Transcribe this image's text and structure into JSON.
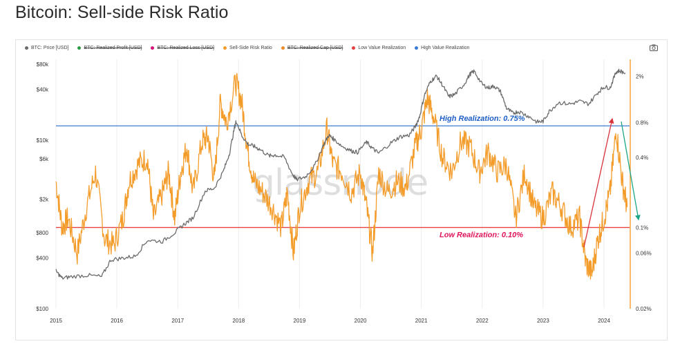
{
  "page": {
    "title": "Bitcoin: Sell-side Risk Ratio"
  },
  "legend": [
    {
      "label": "BTC: Price [USD]",
      "color": "#6b6b6b",
      "enabled": true
    },
    {
      "label": "BTC: Realized Profit [USD]",
      "color": "#2e9a45",
      "enabled": false
    },
    {
      "label": "BTC: Realized Loss [USD]",
      "color": "#d6157a",
      "enabled": false
    },
    {
      "label": "Sell-Side Risk Ratio",
      "color": "#f39c2a",
      "enabled": true
    },
    {
      "label": "BTC: Realized Cap [USD]",
      "color": "#f08a2a",
      "enabled": false
    },
    {
      "label": "Low Value Realization",
      "color": "#e8403f",
      "enabled": true
    },
    {
      "label": "High Value Realization",
      "color": "#3a7bd5",
      "enabled": true
    }
  ],
  "toolbar": {
    "camera_icon": "camera-icon"
  },
  "watermark": "glassnode",
  "chart_data": {
    "type": "line",
    "title": "Bitcoin: Sell-side Risk Ratio",
    "x_ticks": [
      "2015",
      "2016",
      "2017",
      "2018",
      "2019",
      "2020",
      "2021",
      "2022",
      "2023",
      "2024"
    ],
    "left_axis": {
      "scale": "log",
      "ticks": [
        "$80k",
        "$40k",
        "$10k",
        "$6k",
        "$2k",
        "$800",
        "$400",
        "$100"
      ],
      "tick_values": [
        80000,
        40000,
        10000,
        6000,
        2000,
        800,
        400,
        100
      ],
      "range": [
        100,
        80000
      ]
    },
    "right_axis": {
      "scale": "log",
      "ticks": [
        "2%",
        "0.8%",
        "0.4%",
        "0.1%",
        "0.06%",
        "0.02%"
      ],
      "tick_values": [
        2,
        0.8,
        0.4,
        0.1,
        0.06,
        0.02
      ],
      "range": [
        0.02,
        2.8
      ]
    },
    "grid": "vertical gridlines at year ticks",
    "reference_lines": [
      {
        "name": "High Value Realization",
        "value_pct": 0.75,
        "label": "High Realization: 0.75%",
        "color": "#3a7bd5"
      },
      {
        "name": "Low Value Realization",
        "value_pct": 0.1,
        "label": "Low Realization: 0.10%",
        "color": "#e8403f"
      }
    ],
    "series": [
      {
        "name": "BTC: Price [USD]",
        "axis": "left",
        "color": "#6b6b6b",
        "x": [
          2015.0,
          2015.1,
          2015.25,
          2015.5,
          2015.75,
          2015.9,
          2016.1,
          2016.3,
          2016.5,
          2016.75,
          2016.95,
          2017.1,
          2017.25,
          2017.45,
          2017.6,
          2017.75,
          2017.85,
          2017.93,
          2017.96,
          2018.05,
          2018.15,
          2018.25,
          2018.35,
          2018.5,
          2018.6,
          2018.75,
          2018.88,
          2018.95,
          2019.1,
          2019.25,
          2019.4,
          2019.48,
          2019.55,
          2019.7,
          2019.85,
          2019.95,
          2020.1,
          2020.2,
          2020.3,
          2020.5,
          2020.65,
          2020.8,
          2020.9,
          2020.97,
          2021.05,
          2021.15,
          2021.25,
          2021.35,
          2021.45,
          2021.55,
          2021.7,
          2021.8,
          2021.87,
          2022.0,
          2022.1,
          2022.2,
          2022.3,
          2022.4,
          2022.5,
          2022.6,
          2022.75,
          2022.9,
          2023.0,
          2023.1,
          2023.25,
          2023.45,
          2023.6,
          2023.75,
          2023.9,
          2024.0,
          2024.1,
          2024.2,
          2024.25,
          2024.35
        ],
        "values": [
          280,
          230,
          240,
          250,
          240,
          380,
          400,
          420,
          650,
          630,
          800,
          1000,
          1200,
          2500,
          2700,
          4300,
          7000,
          14000,
          17000,
          11500,
          9000,
          8500,
          7800,
          6500,
          6700,
          6300,
          4000,
          3400,
          3700,
          5000,
          9000,
          11500,
          10500,
          8500,
          7500,
          7200,
          9500,
          8000,
          7000,
          9300,
          11000,
          11500,
          14500,
          19000,
          34000,
          50000,
          58000,
          45000,
          33000,
          35000,
          46000,
          61000,
          66000,
          46000,
          42000,
          44000,
          38000,
          24000,
          21000,
          22000,
          19500,
          16500,
          16800,
          22000,
          28000,
          27000,
          29000,
          27000,
          37000,
          43000,
          42000,
          65000,
          67000,
          63000
        ]
      },
      {
        "name": "Sell-Side Risk Ratio",
        "axis": "right",
        "color": "#f39c2a",
        "x": [
          2015.0,
          2015.1,
          2015.2,
          2015.35,
          2015.5,
          2015.65,
          2015.8,
          2015.95,
          2016.1,
          2016.2,
          2016.35,
          2016.5,
          2016.6,
          2016.75,
          2016.85,
          2016.95,
          2017.05,
          2017.15,
          2017.25,
          2017.4,
          2017.5,
          2017.6,
          2017.7,
          2017.8,
          2017.95,
          2018.05,
          2018.15,
          2018.25,
          2018.4,
          2018.55,
          2018.7,
          2018.8,
          2018.9,
          2019.0,
          2019.15,
          2019.3,
          2019.45,
          2019.55,
          2019.7,
          2019.85,
          2020.0,
          2020.1,
          2020.2,
          2020.3,
          2020.45,
          2020.6,
          2020.75,
          2020.9,
          2021.0,
          2021.1,
          2021.2,
          2021.35,
          2021.5,
          2021.65,
          2021.8,
          2021.95,
          2022.1,
          2022.25,
          2022.4,
          2022.55,
          2022.7,
          2022.85,
          2023.0,
          2023.15,
          2023.3,
          2023.45,
          2023.6,
          2023.7,
          2023.8,
          2023.9,
          2024.0,
          2024.1,
          2024.2,
          2024.3,
          2024.38
        ],
        "values": [
          0.25,
          0.1,
          0.12,
          0.06,
          0.15,
          0.3,
          0.08,
          0.07,
          0.12,
          0.25,
          0.35,
          0.4,
          0.12,
          0.2,
          0.3,
          0.12,
          0.3,
          0.5,
          0.2,
          0.55,
          0.6,
          0.25,
          1.2,
          0.8,
          1.8,
          1.2,
          0.45,
          0.25,
          0.2,
          0.15,
          0.1,
          0.2,
          0.06,
          0.15,
          0.25,
          0.3,
          0.7,
          0.35,
          0.3,
          0.2,
          0.3,
          0.15,
          0.06,
          0.3,
          0.2,
          0.25,
          0.22,
          0.5,
          0.7,
          1.3,
          0.9,
          0.4,
          0.3,
          0.55,
          0.5,
          0.3,
          0.45,
          0.3,
          0.35,
          0.12,
          0.3,
          0.15,
          0.12,
          0.2,
          0.15,
          0.1,
          0.12,
          0.05,
          0.04,
          0.08,
          0.12,
          0.2,
          0.7,
          0.25,
          0.15
        ]
      }
    ],
    "annotations": [
      {
        "text": "High Realization: 0.75%",
        "color": "#1e5fc7"
      },
      {
        "text": "Low Realization: 0.10%",
        "color": "#e0145a"
      }
    ]
  }
}
